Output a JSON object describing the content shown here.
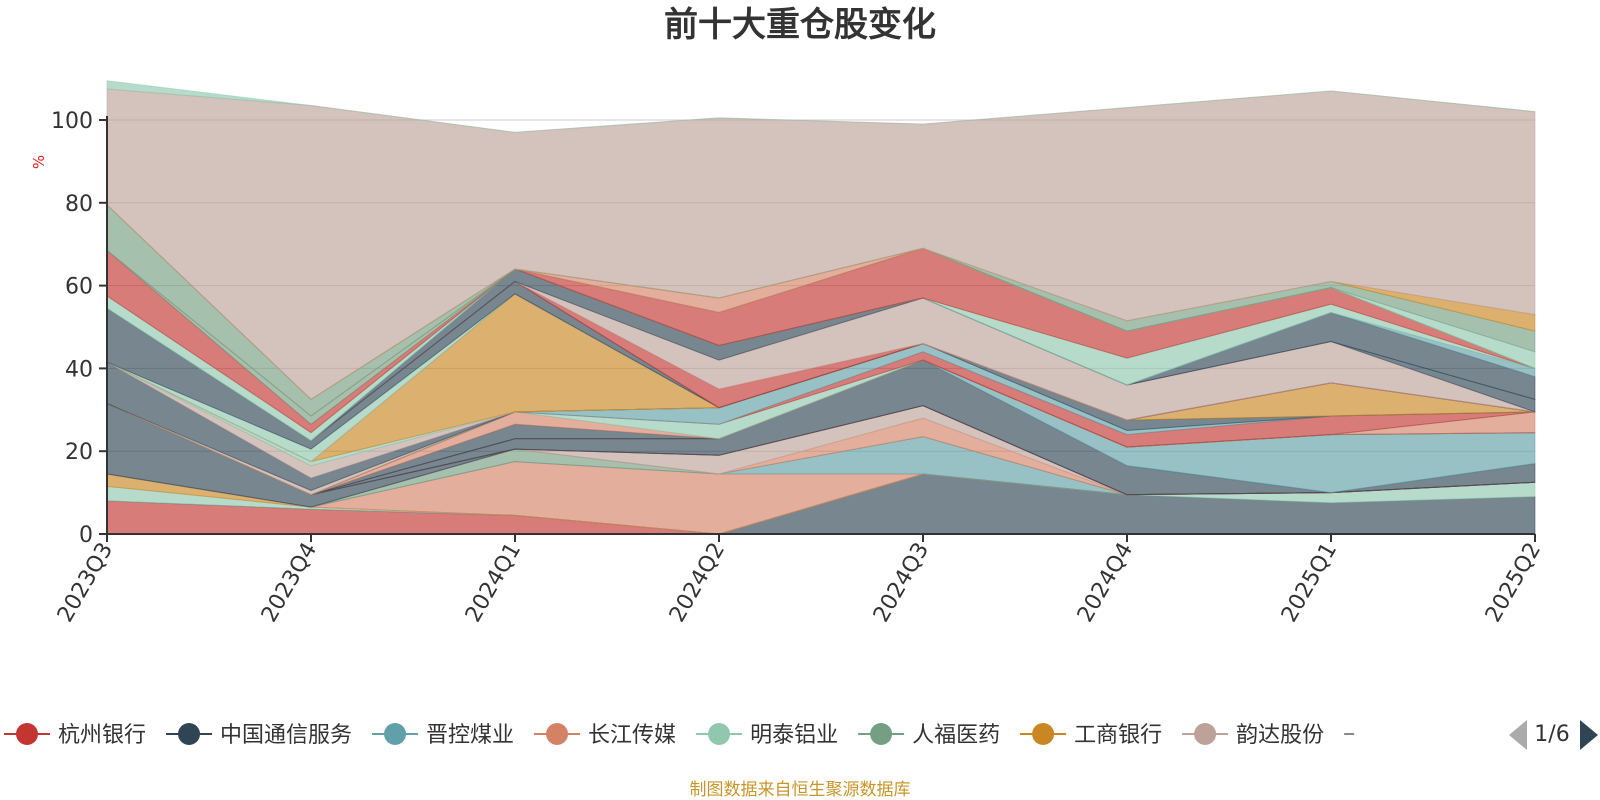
{
  "chart_data": {
    "type": "area",
    "title": "前十大重仓股变化",
    "ylabel": "%",
    "ylim": [
      0,
      100
    ],
    "yticks": [
      0,
      20,
      40,
      60,
      80,
      100
    ],
    "stacked": true,
    "grid": true,
    "categories": [
      "2023Q3",
      "2023Q4",
      "2024Q1",
      "2024Q2",
      "2024Q3",
      "2024Q4",
      "2025Q1",
      "2025Q2"
    ],
    "series": [
      {
        "name": "杭州银行",
        "color": "#c23531",
        "values": [
          8,
          6,
          4.5,
          0,
          0,
          0,
          0,
          0
        ]
      },
      {
        "name": "中国通信服务",
        "color": "#2f4554",
        "values": [
          0,
          0,
          0,
          0,
          14.5,
          9.5,
          7.5,
          9
        ]
      },
      {
        "name": "明泰铝业",
        "color": "#91c7ae",
        "values": [
          3.5,
          0.5,
          0,
          0,
          0,
          0,
          2.5,
          3.5
        ]
      },
      {
        "name": "工商银行",
        "color": "#ca8622",
        "values": [
          3,
          0,
          0,
          0,
          0,
          0,
          0,
          0
        ]
      },
      {
        "name": "长江传媒",
        "color": "#d48265",
        "values": [
          0,
          0,
          13,
          14.5,
          0,
          0,
          0,
          0
        ]
      },
      {
        "name": "晋控煤业",
        "color": "#61a0a8",
        "values": [
          0,
          0,
          0,
          0,
          9,
          0,
          0,
          0
        ]
      },
      {
        "name": "人福医药",
        "color": "#749f83",
        "values": [
          0,
          0,
          3,
          0,
          0,
          0,
          0,
          0
        ]
      },
      {
        "name": "长江传媒",
        "color": "#d48265",
        "values": [
          0,
          0,
          0,
          0,
          4.5,
          0,
          0,
          0
        ]
      },
      {
        "name": "韵达股份",
        "color": "#bda29a",
        "values": [
          0,
          0,
          0,
          4.5,
          3,
          0,
          0,
          0
        ]
      },
      {
        "name": "中国通信服务",
        "color": "#2f4554",
        "values": [
          17,
          3,
          0,
          0,
          0,
          0,
          0,
          0
        ]
      },
      {
        "name": "杭州银行",
        "color": "#c23531",
        "values": [
          0,
          0,
          0,
          0,
          0,
          0,
          0,
          0
        ]
      },
      {
        "name": "中国通信服务",
        "color": "#2f4554",
        "values": [
          0,
          0,
          2.5,
          4,
          11,
          7,
          0,
          4.5
        ]
      },
      {
        "name": "晋控煤业",
        "color": "#61a0a8",
        "values": [
          0,
          0,
          0,
          0,
          0,
          4.5,
          14,
          7.5
        ]
      },
      {
        "name": "杭州银行",
        "color": "#c23531",
        "values": [
          0,
          0,
          0,
          0,
          0,
          0,
          0,
          0
        ]
      },
      {
        "name": "中国通信服务",
        "color": "#2f4554",
        "values": [
          0,
          0,
          3.5,
          0,
          0,
          0,
          0,
          0
        ]
      },
      {
        "name": "长江传媒",
        "color": "#d48265",
        "values": [
          0,
          0,
          3,
          0,
          0,
          0,
          0,
          5
        ]
      },
      {
        "name": "明泰铝业",
        "color": "#91c7ae",
        "values": [
          0,
          0,
          0,
          3.5,
          0,
          0,
          0,
          0
        ]
      },
      {
        "name": "杭州银行",
        "color": "#c23531",
        "values": [
          0,
          0,
          0,
          0,
          2,
          3,
          4.5,
          0
        ]
      },
      {
        "name": "晋控煤业",
        "color": "#61a0a8",
        "values": [
          0,
          0,
          0,
          4,
          2,
          1,
          0,
          0
        ]
      },
      {
        "name": "中国通信服务",
        "color": "#2f4554",
        "values": [
          0,
          0,
          0,
          0,
          0,
          2.5,
          0,
          0
        ]
      },
      {
        "name": "工商银行",
        "color": "#ca8622",
        "values": [
          0,
          0,
          0,
          0,
          0,
          0,
          8,
          0
        ]
      },
      {
        "name": "韵达股份",
        "color": "#bda29a",
        "values": [
          0,
          1,
          0,
          0,
          0,
          0,
          0,
          0
        ]
      },
      {
        "name": "中国通信服务",
        "color": "#2f4554",
        "values": [
          10,
          3,
          0,
          0,
          0,
          0,
          0,
          0
        ]
      },
      {
        "name": "韵达股份",
        "color": "#bda29a",
        "values": [
          0,
          3,
          0,
          0,
          0,
          0,
          0,
          0
        ]
      },
      {
        "name": "明泰铝业",
        "color": "#91c7ae",
        "values": [
          0,
          1,
          0,
          0,
          0,
          0,
          0,
          0
        ]
      },
      {
        "name": "工商银行",
        "color": "#ca8622",
        "values": [
          0,
          0,
          28.5,
          0,
          0,
          0,
          0,
          0
        ]
      },
      {
        "name": "长江传媒",
        "color": "#d48265",
        "values": [
          0,
          0,
          0,
          0,
          0,
          0,
          0,
          0
        ]
      },
      {
        "name": "明泰铝业",
        "color": "#91c7ae",
        "values": [
          0,
          3,
          0,
          0,
          0,
          0,
          0,
          0
        ]
      },
      {
        "name": "中国通信服务",
        "color": "#2f4554",
        "values": [
          13,
          2,
          3,
          0,
          0,
          0,
          0,
          0
        ]
      },
      {
        "name": "杭州银行",
        "color": "#c23531",
        "values": [
          0,
          0,
          0,
          4.5,
          0,
          0,
          0,
          0
        ]
      },
      {
        "name": "韵达股份",
        "color": "#bda29a",
        "values": [
          0,
          0,
          0,
          7,
          11,
          8.5,
          10,
          0
        ]
      },
      {
        "name": "中国通信服务",
        "color": "#2f4554",
        "values": [
          0,
          0,
          3,
          3.5,
          0,
          0,
          0,
          3
        ]
      },
      {
        "name": "中国通信服务",
        "color": "#2f4554",
        "values": [
          0,
          0,
          0,
          0,
          0,
          0,
          7,
          5.5
        ]
      },
      {
        "name": "晋控煤业",
        "color": "#61a0a8",
        "values": [
          0,
          0,
          0,
          0,
          0,
          0,
          0,
          2
        ]
      },
      {
        "name": "明泰铝业",
        "color": "#91c7ae",
        "values": [
          3,
          2,
          0,
          0,
          0,
          6.5,
          2,
          0
        ]
      },
      {
        "name": "杭州银行",
        "color": "#c23531",
        "values": [
          11,
          2,
          0,
          8,
          12,
          6.5,
          4,
          0
        ]
      },
      {
        "name": "人福医药",
        "color": "#749f83",
        "values": [
          0,
          2,
          0,
          0,
          0,
          0,
          0,
          0
        ]
      },
      {
        "name": "长江传媒",
        "color": "#d48265",
        "values": [
          0,
          0,
          0,
          3.5,
          0,
          0,
          0,
          0
        ]
      },
      {
        "name": "人福医药",
        "color": "#749f83",
        "values": [
          11,
          4,
          0,
          0,
          0,
          0,
          0,
          0
        ]
      },
      {
        "name": "明泰铝业",
        "color": "#91c7ae",
        "values": [
          0,
          0,
          0,
          0,
          0,
          0,
          0,
          4
        ]
      },
      {
        "name": "人福医药",
        "color": "#749f83",
        "values": [
          0,
          0,
          0,
          0,
          0,
          2.5,
          1.5,
          5
        ]
      },
      {
        "name": "工商银行",
        "color": "#ca8622",
        "values": [
          0,
          0,
          0,
          0,
          0,
          0,
          0,
          4
        ]
      },
      {
        "name": "韵达股份",
        "color": "#bda29a",
        "values": [
          28,
          71,
          33,
          43.5,
          30,
          51.5,
          46,
          49
        ]
      },
      {
        "name": "明泰铝业",
        "color": "#91c7ae",
        "values": [
          2,
          0,
          0,
          0,
          0,
          0,
          0,
          0
        ]
      }
    ]
  },
  "legend": {
    "items": [
      {
        "name": "杭州银行",
        "color": "#c23531"
      },
      {
        "name": "中国通信服务",
        "color": "#2f4554"
      },
      {
        "name": "晋控煤业",
        "color": "#61a0a8"
      },
      {
        "name": "长江传媒",
        "color": "#d48265"
      },
      {
        "name": "明泰铝业",
        "color": "#91c7ae"
      },
      {
        "name": "人福医药",
        "color": "#749f83"
      },
      {
        "name": "工商银行",
        "color": "#ca8622"
      },
      {
        "name": "韵达股份",
        "color": "#bda29a"
      }
    ],
    "page_label": "1/6"
  },
  "source_text": "制图数据来自恒生聚源数据库"
}
